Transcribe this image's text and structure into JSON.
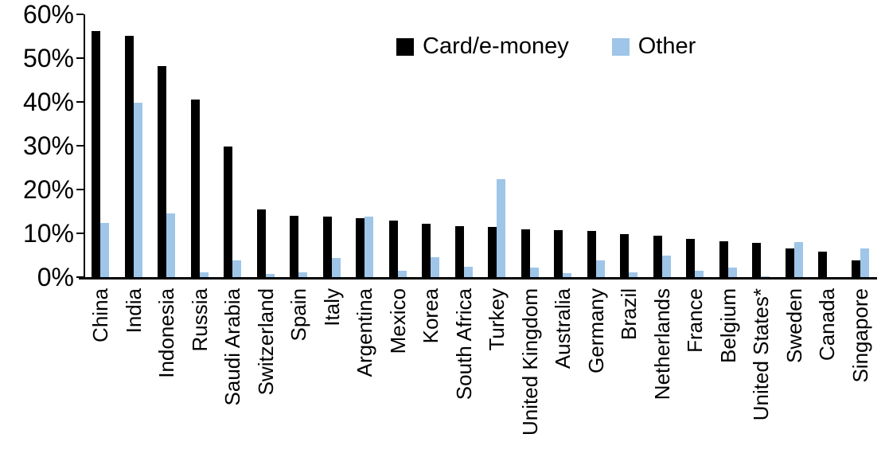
{
  "chart_data": {
    "type": "bar",
    "title": "",
    "xlabel": "",
    "ylabel": "",
    "ylim": [
      0,
      60
    ],
    "y_tick_step": 10,
    "y_tick_labels": [
      "0%",
      "10%",
      "20%",
      "30%",
      "40%",
      "50%",
      "60%"
    ],
    "grid": "off",
    "legend_position": "top-center",
    "categories": [
      "China",
      "India",
      "Indonesia",
      "Russia",
      "Saudi Arabia",
      "Switzerland",
      "Spain",
      "Italy",
      "Argentina",
      "Mexico",
      "Korea",
      "South Africa",
      "Turkey",
      "United Kingdom",
      "Australia",
      "Germany",
      "Brazil",
      "Netherlands",
      "France",
      "Belgium",
      "United States*",
      "Sweden",
      "Canada",
      "Singapore"
    ],
    "series": [
      {
        "name": "Card/e-money",
        "color": "#000000",
        "values": [
          56.2,
          55.0,
          48.2,
          40.5,
          29.8,
          15.4,
          14.0,
          13.8,
          13.4,
          12.9,
          12.2,
          11.7,
          11.5,
          10.9,
          10.7,
          10.5,
          9.9,
          9.4,
          8.7,
          8.1,
          7.8,
          6.5,
          5.9,
          3.8
        ]
      },
      {
        "name": "Other",
        "color": "#9FC5E8",
        "values": [
          12.3,
          39.8,
          14.5,
          1.0,
          3.9,
          0.7,
          1.0,
          4.4,
          13.9,
          1.4,
          4.6,
          2.3,
          22.4,
          2.2,
          0.9,
          3.9,
          1.0,
          4.9,
          1.5,
          2.1,
          0.2,
          8.0,
          0.0,
          6.6
        ]
      }
    ],
    "axis_color": "#000000"
  }
}
